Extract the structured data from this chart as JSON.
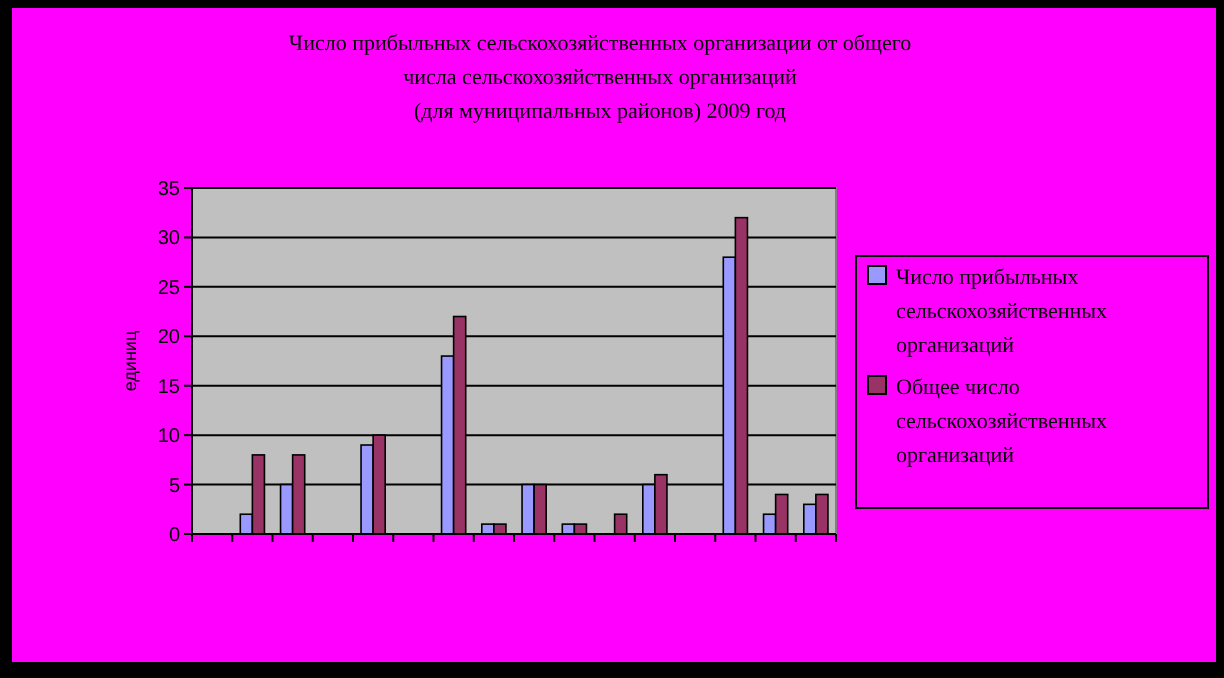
{
  "chart_data": {
    "type": "bar",
    "title": "Число прибыльных сельскохозяйственных организации от общего\nчисла сельскохозяйственных организаций\n(для муниципальных районов) 2009 год",
    "ylabel": "единиц",
    "categories": [
      null,
      null,
      null,
      null,
      null,
      null,
      null,
      null,
      null,
      null,
      null,
      null,
      null,
      null,
      null,
      null
    ],
    "series": [
      {
        "name": "Число прибыльных сельскохозяйственных организаций",
        "color": "#9999ff",
        "values": [
          0,
          2,
          5,
          0,
          9,
          0,
          18,
          1,
          5,
          1,
          0,
          5,
          0,
          28,
          2,
          3
        ]
      },
      {
        "name": "Общее число сельскохозяйственных организаций",
        "color": "#993366",
        "values": [
          0,
          8,
          8,
          0,
          10,
          0,
          22,
          1,
          5,
          1,
          2,
          6,
          0,
          32,
          4,
          4
        ]
      }
    ],
    "ylim": [
      0,
      35
    ],
    "yticks": [
      0,
      5,
      10,
      15,
      20,
      25,
      30,
      35
    ],
    "grid": "y",
    "legend": "right"
  }
}
